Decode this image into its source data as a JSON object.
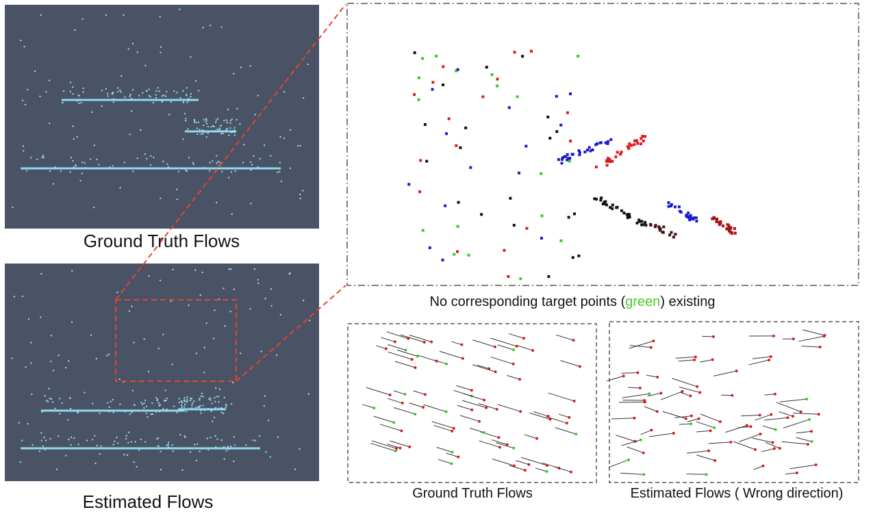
{
  "left_panels": {
    "top_caption": "Ground Truth Flows",
    "bottom_caption": "Estimated Flows"
  },
  "zoom_panel": {
    "caption_before": "No corresponding target points (",
    "caption_highlight": "green",
    "caption_after": ") existing"
  },
  "flow_panels": {
    "left_caption": "Ground Truth Flows",
    "right_caption": "Estimated Flows ( Wrong direction)"
  }
}
